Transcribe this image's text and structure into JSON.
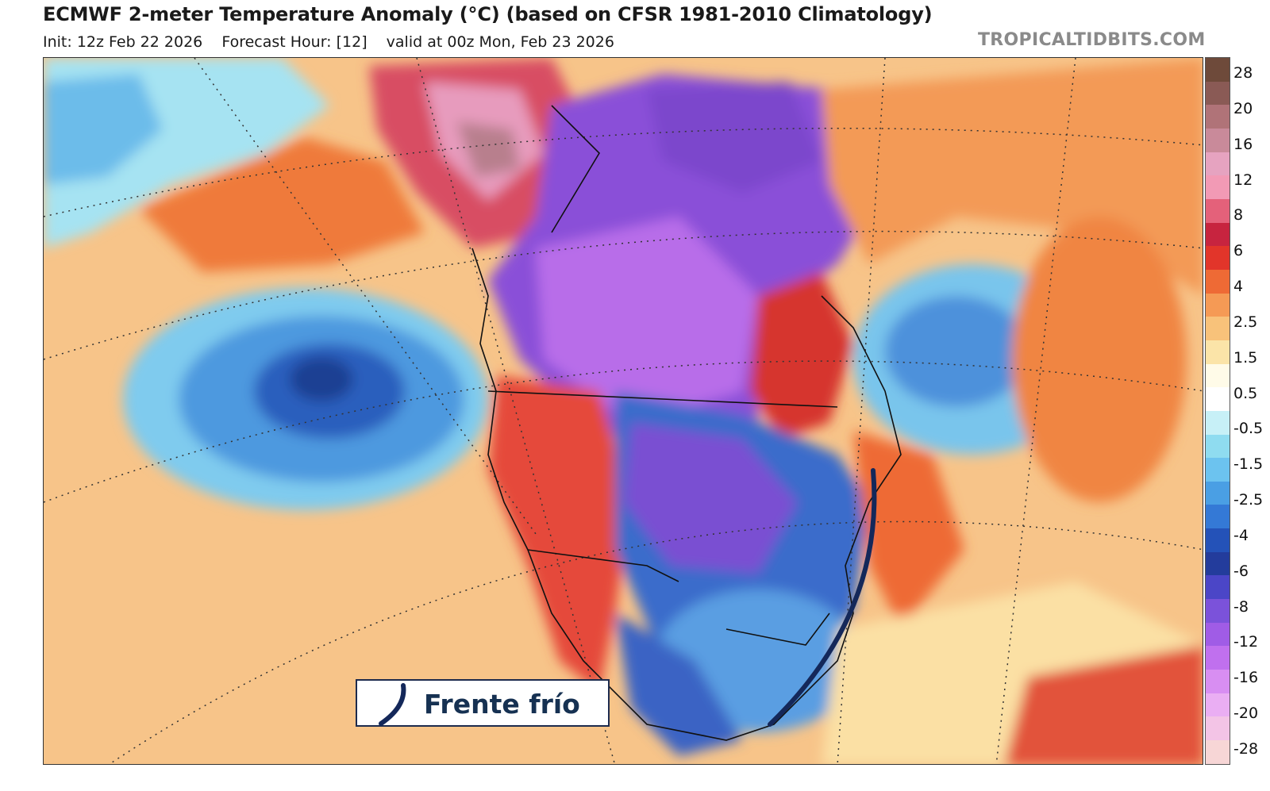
{
  "header": {
    "title": "ECMWF 2-meter Temperature Anomaly (°C) (based on CFSR 1981-2010 Climatology)",
    "init": "Init: 12z Feb 22 2026",
    "forecast_hour": "Forecast Hour: [12]",
    "valid": "valid at 00z Mon, Feb 23 2026",
    "brand": "TROPICALTIDBITS.COM"
  },
  "colorbar": {
    "labels": [
      "28",
      "20",
      "16",
      "12",
      "8",
      "6",
      "4",
      "2.5",
      "1.5",
      "0.5",
      "-0.5",
      "-1.5",
      "-2.5",
      "-4",
      "-6",
      "-8",
      "-12",
      "-16",
      "-20",
      "-28"
    ],
    "colors": [
      "#6e4a3a",
      "#8a5a55",
      "#b07378",
      "#c98a9a",
      "#e6a3c0",
      "#f29ab5",
      "#e4617a",
      "#c7243f",
      "#e2352a",
      "#ee6a35",
      "#f59a55",
      "#f8c27a",
      "#fbe4a8",
      "#fffbe8",
      "#ffffff",
      "#c7f0f7",
      "#8fdcf0",
      "#6cc3ef",
      "#4a9fe4",
      "#3479d6",
      "#2452b8",
      "#233c9c",
      "#4b46c7",
      "#7b52da",
      "#a05ce6",
      "#c070ee",
      "#d88ef2",
      "#eaaef3",
      "#f3c4e6",
      "#f7d6d6"
    ]
  },
  "legend": {
    "label": "Frente frío",
    "line_color": "#14285a"
  }
}
